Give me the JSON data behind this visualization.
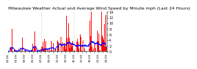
{
  "title": "Milwaukee Weather Actual and Average Wind Speed by Minute mph (Last 24 Hours)",
  "title_fontsize": 4.5,
  "background_color": "#ffffff",
  "plot_bg_color": "#ffffff",
  "bar_color": "#ff0000",
  "line_color": "#0000ff",
  "ylim": [
    0,
    14
  ],
  "yticks": [
    0,
    2,
    4,
    6,
    8,
    10,
    12,
    14
  ],
  "ylabel_fontsize": 3.5,
  "xlabel_fontsize": 3.2,
  "n_points": 1440,
  "vline_positions": [
    480,
    960
  ],
  "vline_color": "#aaaaaa",
  "vline_style": "dotted"
}
